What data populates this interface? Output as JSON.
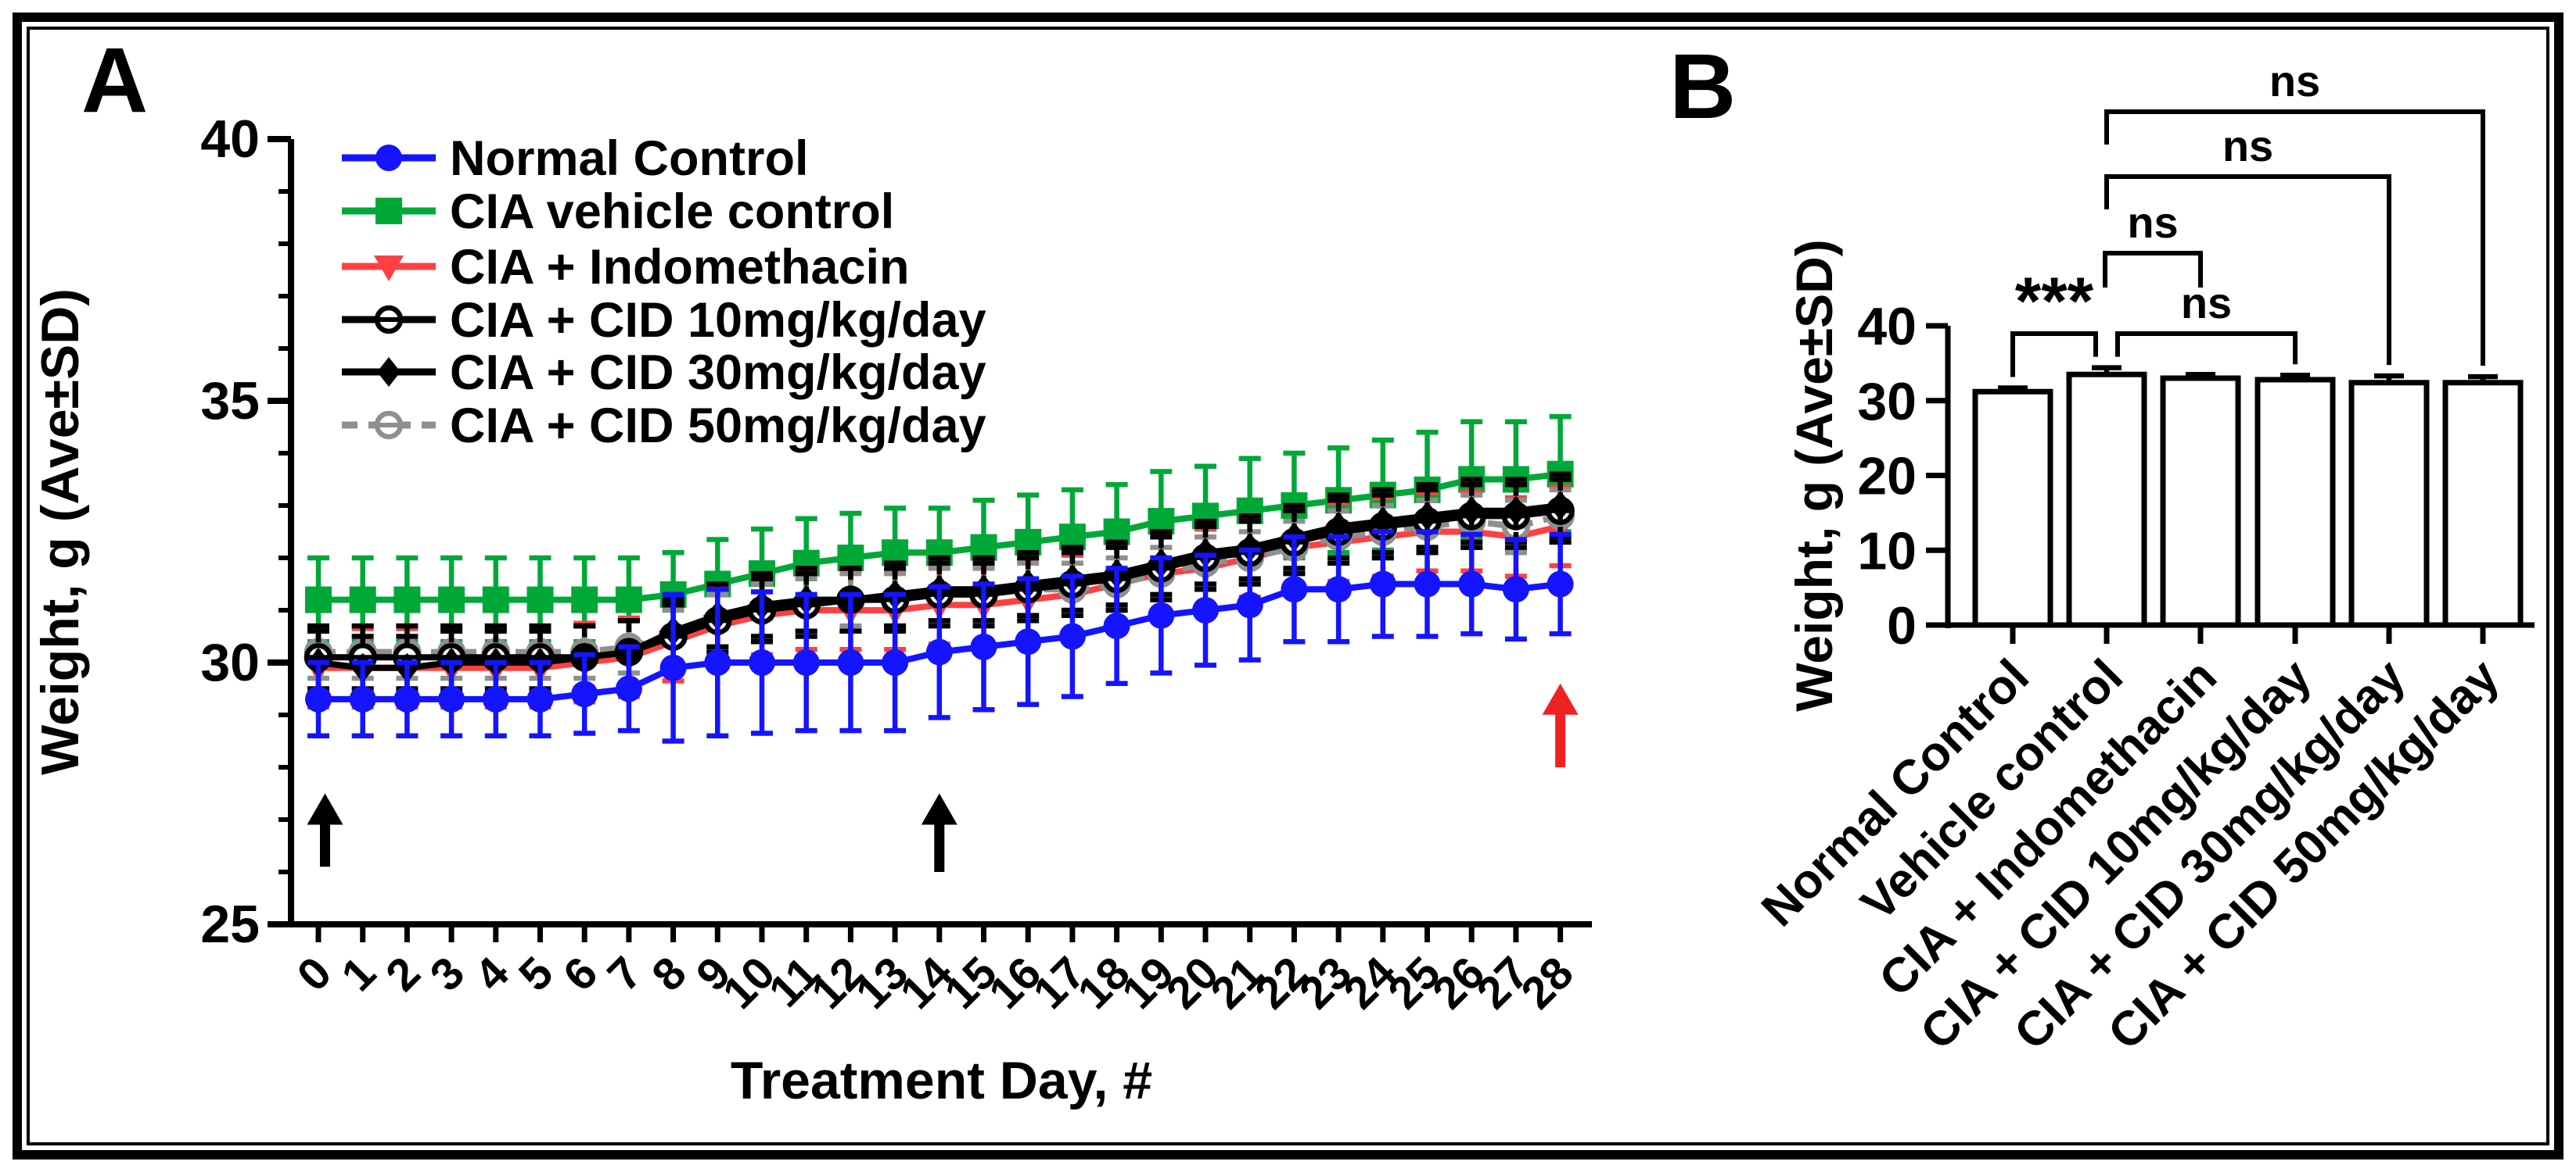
{
  "figure": {
    "background": "#ffffff",
    "border_color": "#000000",
    "panels": [
      {
        "label": "A"
      },
      {
        "label": "B"
      }
    ]
  },
  "chart_data": [
    {
      "type": "line",
      "panel": "A",
      "title": "",
      "xlabel": "Treatment Day, #",
      "ylabel": "Weight, g (Ave±SD)",
      "ylim": [
        25,
        40
      ],
      "yticks": [
        25,
        30,
        35,
        40
      ],
      "y_minor_step": 1,
      "x": [
        0,
        1,
        2,
        3,
        4,
        5,
        6,
        7,
        8,
        9,
        10,
        11,
        12,
        13,
        14,
        15,
        16,
        17,
        18,
        19,
        20,
        21,
        22,
        23,
        24,
        25,
        26,
        27,
        28
      ],
      "legend_position": "top-left-inside",
      "series": [
        {
          "name": "Normal Control",
          "color": "#1414ff",
          "marker": "circle",
          "line": "solid",
          "err_style": "solid",
          "values": [
            29.3,
            29.3,
            29.3,
            29.3,
            29.3,
            29.3,
            29.4,
            29.5,
            29.9,
            30.0,
            30.0,
            30.0,
            30.0,
            30.0,
            30.2,
            30.3,
            30.4,
            30.5,
            30.7,
            30.9,
            31.0,
            31.1,
            31.4,
            31.4,
            31.5,
            31.5,
            31.5,
            31.4,
            31.5
          ],
          "sd": [
            0.7,
            0.7,
            0.7,
            0.7,
            0.7,
            0.7,
            0.75,
            0.8,
            1.4,
            1.4,
            1.35,
            1.3,
            1.3,
            1.3,
            1.25,
            1.2,
            1.2,
            1.15,
            1.1,
            1.1,
            1.05,
            1.05,
            1.0,
            1.0,
            1.0,
            1.0,
            0.95,
            0.95,
            0.95
          ]
        },
        {
          "name": "CIA vehicle control",
          "color": "#00a838",
          "marker": "square",
          "line": "solid",
          "err_style": "solid",
          "values": [
            31.2,
            31.2,
            31.2,
            31.2,
            31.2,
            31.2,
            31.2,
            31.2,
            31.3,
            31.5,
            31.7,
            31.9,
            32.0,
            32.1,
            32.1,
            32.2,
            32.3,
            32.4,
            32.5,
            32.7,
            32.8,
            32.9,
            33.0,
            33.1,
            33.2,
            33.3,
            33.5,
            33.5,
            33.6
          ],
          "sd": [
            0.8,
            0.8,
            0.8,
            0.8,
            0.8,
            0.8,
            0.8,
            0.8,
            0.8,
            0.85,
            0.85,
            0.85,
            0.85,
            0.85,
            0.85,
            0.9,
            0.9,
            0.9,
            0.9,
            0.95,
            0.95,
            1.0,
            1.0,
            1.0,
            1.05,
            1.1,
            1.1,
            1.1,
            1.1
          ]
        },
        {
          "name": "CIA + Indomethacin",
          "color": "#ff4040",
          "marker": "triangle-down",
          "line": "solid",
          "err_style": "dashed",
          "values": [
            29.9,
            29.9,
            29.9,
            29.9,
            29.9,
            29.9,
            30.0,
            30.1,
            30.4,
            30.7,
            30.9,
            31.0,
            31.0,
            31.0,
            31.1,
            31.1,
            31.2,
            31.3,
            31.5,
            31.7,
            31.8,
            32.0,
            32.2,
            32.3,
            32.4,
            32.5,
            32.5,
            32.4,
            32.6
          ],
          "sd": 0.75
        },
        {
          "name": "CIA + CID 10mg/kg/day",
          "color": "#000000",
          "marker": "circle-open-hbar",
          "line": "solid",
          "err_style": "dashed",
          "values": [
            30.1,
            30.1,
            30.1,
            30.1,
            30.1,
            30.1,
            30.1,
            30.2,
            30.5,
            30.8,
            31.0,
            31.1,
            31.2,
            31.2,
            31.3,
            31.3,
            31.4,
            31.5,
            31.6,
            31.8,
            32.0,
            32.1,
            32.3,
            32.5,
            32.6,
            32.7,
            32.8,
            32.8,
            32.9
          ],
          "sd": 0.6
        },
        {
          "name": "CIA + CID 30mg/kg/day",
          "color": "#000000",
          "marker": "diamond",
          "line": "solid",
          "err_style": "dashed",
          "values": [
            30.0,
            29.9,
            29.9,
            30.0,
            30.0,
            30.0,
            30.1,
            30.2,
            30.6,
            30.9,
            31.1,
            31.2,
            31.2,
            31.3,
            31.4,
            31.4,
            31.5,
            31.6,
            31.7,
            31.9,
            32.1,
            32.2,
            32.4,
            32.6,
            32.7,
            32.8,
            32.9,
            32.9,
            33.0
          ],
          "sd": 0.6
        },
        {
          "name": "CIA + CID 50mg/kg/day",
          "color": "#8f8f8f",
          "marker": "circle-open-hbar",
          "line": "dashed",
          "err_style": "dashed",
          "values": [
            30.2,
            30.2,
            30.2,
            30.2,
            30.2,
            30.2,
            30.2,
            30.3,
            30.5,
            30.8,
            31.0,
            31.1,
            31.2,
            31.2,
            31.3,
            31.3,
            31.4,
            31.4,
            31.5,
            31.7,
            31.9,
            32.0,
            32.2,
            32.4,
            32.5,
            32.6,
            32.7,
            32.6,
            32.8
          ],
          "sd": 0.5
        }
      ],
      "annotations": {
        "arrows": [
          {
            "day": 0.15,
            "tip_g": 27.5,
            "base_g": 26.1,
            "color": "#000000",
            "name": "immunization-arrow"
          },
          {
            "day": 14.0,
            "tip_g": 27.5,
            "base_g": 26.0,
            "color": "#000000",
            "name": "boost-arrow"
          },
          {
            "day": 28.0,
            "tip_g": 29.6,
            "base_g": 28.0,
            "color": "#ee2222",
            "name": "endpoint-arrow"
          }
        ]
      }
    },
    {
      "type": "bar",
      "panel": "B",
      "title": "",
      "xlabel": "",
      "ylabel": "Weight, g (Ave±SD)",
      "ylim": [
        0,
        40
      ],
      "yticks": [
        0,
        10,
        20,
        30,
        40
      ],
      "categories": [
        "Normal Control",
        "Vehicle control",
        "CIA + Indomethacin",
        "CIA + CID 10mg/kg/day",
        "CIA + CID 30mg/kg/day",
        "CIA + CID 50mg/kg/day"
      ],
      "values": [
        31.2,
        33.5,
        33.0,
        32.8,
        32.4,
        32.4
      ],
      "errors": [
        0.5,
        0.9,
        0.5,
        0.6,
        0.9,
        0.8
      ],
      "bar_fill": "#ffffff",
      "bar_stroke": "#000000",
      "significance": [
        {
          "label": "***",
          "from": 0,
          "to": 1,
          "level": 0
        },
        {
          "label": "ns",
          "from": 1,
          "to": 3,
          "level": 0
        },
        {
          "label": "ns",
          "from": 1,
          "to": 2,
          "level": 1
        },
        {
          "label": "ns",
          "from": 1,
          "to": 4,
          "level": 2
        },
        {
          "label": "ns",
          "from": 1,
          "to": 5,
          "level": 3
        }
      ]
    }
  ]
}
